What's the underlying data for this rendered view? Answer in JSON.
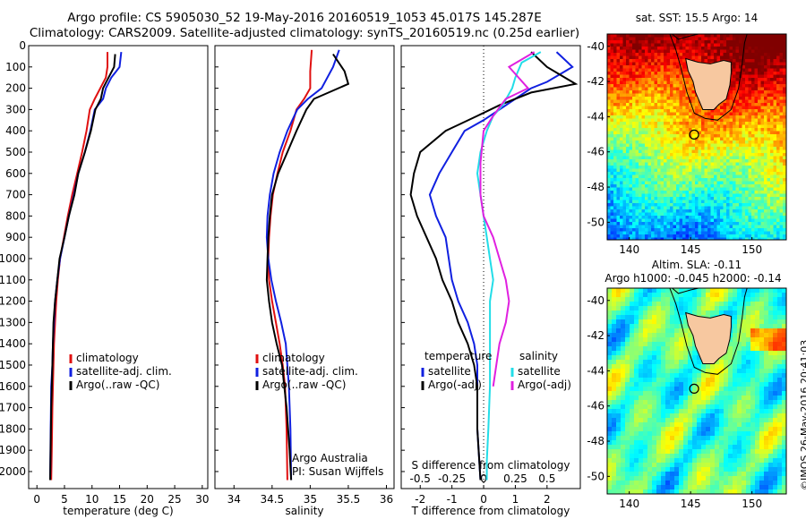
{
  "header": {
    "line1": "Argo profile: CS 5905030_52 19-May-2016 20160519_1053 45.017S 145.287E",
    "line2": "Climatology: CARS2009. Satellite-adjusted climatology: synTS_20160519.nc (0.25d earlier)"
  },
  "footer_stamp": "©IMOS 26-May-2016 20:41:03",
  "colors": {
    "climatology": "#e01010",
    "satellite": "#1020e0",
    "argo": "#000000",
    "cyan": "#22dde8",
    "magenta": "#e020e0"
  },
  "chart_data": [
    {
      "id": "temperature",
      "type": "line",
      "xlabel": "temperature (deg C)",
      "ylabel": "",
      "xlim": [
        -1.5,
        31
      ],
      "ylim": [
        2080,
        0
      ],
      "xticks": [
        0,
        5,
        10,
        15,
        20,
        25,
        30
      ],
      "yticks": [
        0,
        100,
        200,
        300,
        400,
        500,
        600,
        700,
        800,
        900,
        1000,
        1100,
        1200,
        1300,
        1400,
        1500,
        1600,
        1700,
        1800,
        1900,
        2000
      ],
      "legend": [
        "climatology",
        "satellite-adj. clim.",
        "Argo(..raw -QC)"
      ],
      "series": [
        {
          "name": "climatology",
          "color": "climatology",
          "x": [
            12.8,
            12.8,
            12.5,
            11.5,
            10.5,
            9.6,
            9.0,
            8.2,
            7.3,
            6.4,
            5.6,
            4.9,
            4.2,
            3.8,
            3.5,
            3.3,
            3.1,
            3.0,
            2.9,
            2.8,
            2.7,
            2.6
          ],
          "y": [
            30,
            100,
            150,
            200,
            250,
            300,
            400,
            500,
            600,
            700,
            800,
            900,
            1000,
            1100,
            1200,
            1300,
            1400,
            1500,
            1600,
            1700,
            1900,
            2040
          ]
        },
        {
          "name": "satellite-adj. clim.",
          "color": "satellite",
          "x": [
            15.3,
            15.0,
            13.5,
            12.5,
            12.0,
            10.5,
            9.7,
            8.7,
            7.5,
            6.7,
            5.8,
            5.0,
            4.2,
            3.7,
            3.3,
            3.1,
            2.9,
            2.8,
            2.6,
            2.5,
            2.4
          ],
          "y": [
            30,
            100,
            150,
            200,
            250,
            300,
            400,
            500,
            600,
            700,
            800,
            900,
            1000,
            1100,
            1200,
            1300,
            1400,
            1500,
            1600,
            1800,
            2040
          ]
        },
        {
          "name": "Argo(..raw -QC)",
          "color": "argo",
          "x": [
            14.2,
            14.0,
            13.0,
            12.0,
            11.6,
            10.6,
            9.8,
            8.7,
            7.5,
            6.8,
            5.8,
            5.0,
            4.1,
            3.7,
            3.3,
            3.0,
            2.8,
            2.6,
            2.4
          ],
          "y": [
            40,
            100,
            150,
            200,
            250,
            300,
            400,
            500,
            600,
            700,
            800,
            900,
            1000,
            1100,
            1200,
            1300,
            1500,
            1700,
            2040
          ]
        }
      ]
    },
    {
      "id": "salinity",
      "type": "line",
      "xlabel": "salinity",
      "ylabel": "",
      "xlim": [
        33.75,
        36.1
      ],
      "ylim": [
        2080,
        0
      ],
      "xticks": [
        34,
        34.5,
        35,
        35.5,
        36
      ],
      "legend": [
        "climatology",
        "satellite-adj. clim.",
        "Argo(..raw -QC)"
      ],
      "annotation": [
        "Argo Australia",
        "PI: Susan Wijffels"
      ],
      "series": [
        {
          "name": "climatology",
          "color": "climatology",
          "x": [
            35.02,
            35.0,
            35.0,
            34.92,
            34.82,
            34.74,
            34.64,
            34.57,
            34.51,
            34.48,
            34.46,
            34.45,
            34.46,
            34.5,
            34.55,
            34.6,
            34.64,
            34.67,
            34.69,
            34.7
          ],
          "y": [
            20,
            120,
            200,
            250,
            300,
            400,
            500,
            600,
            700,
            800,
            900,
            1000,
            1100,
            1200,
            1300,
            1400,
            1500,
            1600,
            1800,
            2040
          ]
        },
        {
          "name": "satellite-adj. clim.",
          "color": "satellite",
          "x": [
            35.38,
            35.3,
            35.15,
            34.97,
            34.83,
            34.7,
            34.6,
            34.52,
            34.47,
            34.44,
            34.43,
            34.45,
            34.49,
            34.55,
            34.62,
            34.68,
            34.72,
            34.74,
            34.75
          ],
          "y": [
            20,
            100,
            200,
            250,
            300,
            400,
            500,
            600,
            700,
            800,
            900,
            1000,
            1100,
            1200,
            1300,
            1400,
            1600,
            1800,
            2040
          ]
        },
        {
          "name": "Argo(..raw -QC)",
          "color": "argo",
          "x": [
            35.3,
            35.45,
            35.5,
            35.05,
            34.95,
            34.82,
            34.7,
            34.58,
            34.5,
            34.47,
            34.45,
            34.44,
            34.43,
            34.46,
            34.5,
            34.56,
            34.63,
            34.69,
            34.73,
            34.75
          ],
          "y": [
            40,
            120,
            180,
            250,
            300,
            400,
            500,
            600,
            700,
            800,
            900,
            1000,
            1100,
            1200,
            1300,
            1400,
            1500,
            1700,
            1900,
            2040
          ]
        }
      ]
    },
    {
      "id": "difference",
      "type": "line",
      "xlabel": "T difference from climatology",
      "xlabel_top": "S difference from climatology",
      "xlim": [
        -2.6,
        3.05
      ],
      "ylim": [
        2080,
        0
      ],
      "xticks": [
        -2,
        -1,
        0,
        1,
        2
      ],
      "xtick_labels_top": [
        "-0.5",
        "-0.25",
        "0",
        "0.25",
        "0.5"
      ],
      "xticks_top": [
        -2,
        -1,
        0,
        1,
        2
      ],
      "legend_groups": [
        {
          "heading": "temperature",
          "items": [
            "satellite",
            "Argo(-adj)"
          ]
        },
        {
          "heading": "salinity",
          "items": [
            "satellite",
            "Argo(-adj)"
          ]
        }
      ],
      "series": [
        {
          "name": "T satellite",
          "color": "satellite",
          "x": [
            2.3,
            2.8,
            2.0,
            1.5,
            1.0,
            0.5,
            0.0,
            -0.6,
            -1.0,
            -1.4,
            -1.7,
            -1.5,
            -1.2,
            -1.1,
            -1.0,
            -0.8,
            -0.5,
            -0.3,
            -0.2,
            -0.2,
            -0.1
          ],
          "y": [
            30,
            100,
            170,
            200,
            250,
            300,
            350,
            400,
            500,
            600,
            700,
            800,
            900,
            1000,
            1100,
            1200,
            1300,
            1400,
            1500,
            1800,
            2040
          ]
        },
        {
          "name": "T Argo(-adj)",
          "color": "argo",
          "x": [
            1.5,
            2.0,
            2.9,
            1.5,
            0.5,
            -0.2,
            -1.2,
            -2.0,
            -2.2,
            -2.3,
            -2.1,
            -1.8,
            -1.5,
            -1.3,
            -1.0,
            -0.8,
            -0.5,
            -0.3,
            -0.2,
            -0.2,
            -0.1
          ],
          "y": [
            30,
            100,
            180,
            220,
            280,
            330,
            400,
            500,
            600,
            700,
            800,
            900,
            1000,
            1100,
            1200,
            1300,
            1400,
            1500,
            1600,
            1800,
            2040
          ]
        },
        {
          "name": "S satellite",
          "color": "cyan",
          "x": [
            1.8,
            1.2,
            1.0,
            0.9,
            0.6,
            0.3,
            0.1,
            -0.1,
            -0.2,
            -0.1,
            0.0,
            0.1,
            0.2,
            0.3,
            0.2,
            0.2,
            0.2,
            0.15,
            0.1,
            0.1
          ],
          "y": [
            30,
            80,
            150,
            200,
            280,
            330,
            400,
            500,
            600,
            700,
            800,
            900,
            1000,
            1100,
            1200,
            1400,
            1600,
            1800,
            1950,
            2040
          ]
        },
        {
          "name": "S Argo(-adj)",
          "color": "magenta",
          "x": [
            1.6,
            0.8,
            1.4,
            0.7,
            0.3,
            0.0,
            -0.1,
            -0.1,
            0.0,
            0.3,
            0.5,
            0.7,
            0.8,
            0.7,
            0.5,
            0.4,
            0.3
          ],
          "y": [
            30,
            100,
            200,
            250,
            330,
            400,
            550,
            700,
            800,
            900,
            1000,
            1100,
            1200,
            1300,
            1400,
            1500,
            1600
          ]
        }
      ]
    },
    {
      "id": "sst-map",
      "type": "heatmap",
      "title": "sat. SST: 15.5 Argo: 14",
      "xlim": [
        138.2,
        152.8
      ],
      "ylim": [
        -51,
        -39.3
      ],
      "xticks": [
        140,
        145,
        150
      ],
      "yticks": [
        -40,
        -42,
        -44,
        -46,
        -48,
        -50
      ],
      "marker": {
        "lon": 145.287,
        "lat": -45.017
      }
    },
    {
      "id": "sla-map",
      "type": "heatmap",
      "title_line1": "Altim. SLA: -0.11",
      "title_line2": "Argo h1000: -0.045 h2000: -0.14",
      "xlim": [
        138.2,
        152.8
      ],
      "ylim": [
        -51,
        -39.3
      ],
      "xticks": [
        140,
        145,
        150
      ],
      "yticks": [
        -40,
        -42,
        -44,
        -46,
        -48,
        -50
      ],
      "marker": {
        "lon": 145.287,
        "lat": -45.017
      }
    }
  ]
}
